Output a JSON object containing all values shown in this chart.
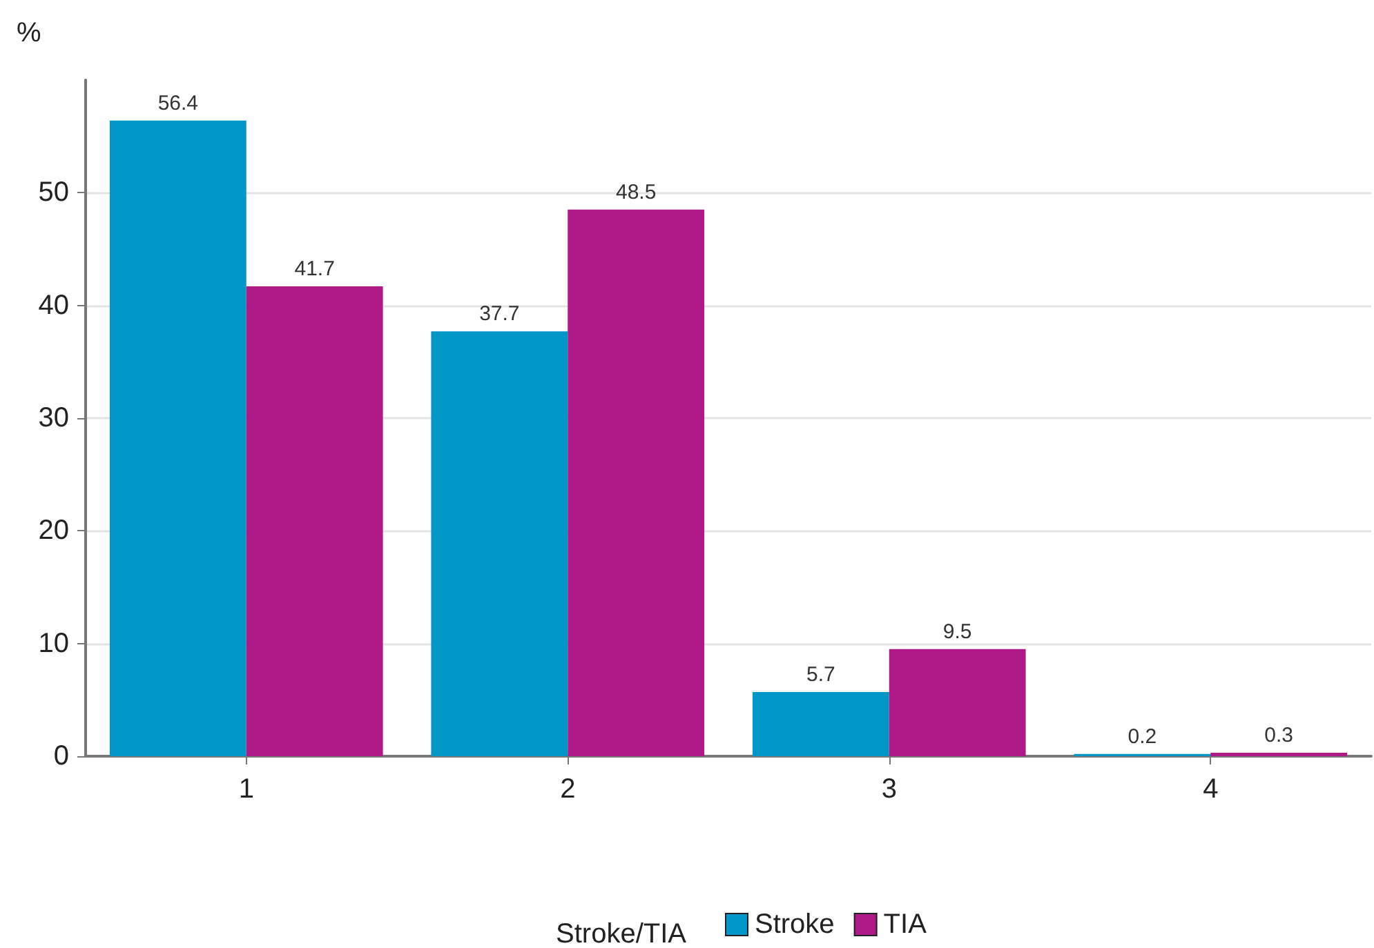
{
  "chart_data": {
    "type": "bar",
    "ylabel": "%",
    "legend_title": "Stroke/TIA",
    "categories": [
      "1",
      "2",
      "3",
      "4"
    ],
    "series": [
      {
        "name": "Stroke",
        "color": "#0096c7",
        "values": [
          56.4,
          37.7,
          5.7,
          0.2
        ]
      },
      {
        "name": "TIA",
        "color": "#ae1987",
        "values": [
          41.7,
          48.5,
          9.5,
          0.3
        ]
      }
    ],
    "ylim": [
      0,
      60
    ],
    "yticks": [
      0,
      10,
      20,
      30,
      40,
      50
    ],
    "grid": "y",
    "legend": "bottom",
    "data_labels": true
  }
}
